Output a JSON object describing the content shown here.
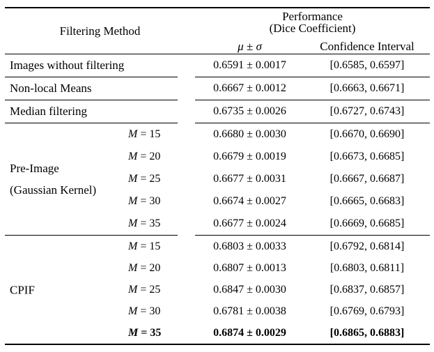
{
  "table": {
    "header": {
      "filtering_method": "Filtering Method",
      "performance_line1": "Performance",
      "performance_line2": "(Dice Coefficient)",
      "mu_sigma": "μ ± σ",
      "confidence_interval": "Confidence Interval"
    },
    "rows": [
      {
        "method": "Images without filtering",
        "mu_sigma": "0.6591 ± 0.0017",
        "ci": "[0.6585, 0.6597]"
      },
      {
        "method": "Non-local Means",
        "mu_sigma": "0.6667 ± 0.0012",
        "ci": "[0.6663, 0.6671]"
      },
      {
        "method": "Median filtering",
        "mu_sigma": "0.6735 ± 0.0026",
        "ci": "[0.6727, 0.6743]"
      }
    ],
    "groups": [
      {
        "method_line1": "Pre-Image",
        "method_line2": "(Gaussian Kernel)",
        "rows": [
          {
            "m_var": "M",
            "m_rest": " = 15",
            "mu_sigma": "0.6680 ± 0.0030",
            "ci": "[0.6670, 0.6690]"
          },
          {
            "m_var": "M",
            "m_rest": " = 20",
            "mu_sigma": "0.6679 ± 0.0019",
            "ci": "[0.6673, 0.6685]"
          },
          {
            "m_var": "M",
            "m_rest": " = 25",
            "mu_sigma": "0.6677 ± 0.0031",
            "ci": "[0.6667, 0.6687]"
          },
          {
            "m_var": "M",
            "m_rest": " = 30",
            "mu_sigma": "0.6674 ± 0.0027",
            "ci": "[0.6665, 0.6683]"
          },
          {
            "m_var": "M",
            "m_rest": " = 35",
            "mu_sigma": "0.6677 ± 0.0024",
            "ci": "[0.6669, 0.6685]"
          }
        ]
      },
      {
        "method_line1": "CPIF",
        "method_line2": "",
        "rows": [
          {
            "m_var": "M",
            "m_rest": " = 15",
            "mu_sigma": "0.6803 ± 0.0033",
            "ci": "[0.6792, 0.6814]"
          },
          {
            "m_var": "M",
            "m_rest": " = 20",
            "mu_sigma": "0.6807 ± 0.0013",
            "ci": "[0.6803, 0.6811]"
          },
          {
            "m_var": "M",
            "m_rest": " = 25",
            "mu_sigma": "0.6847 ± 0.0030",
            "ci": "[0.6837, 0.6857]"
          },
          {
            "m_var": "M",
            "m_rest": " = 30",
            "mu_sigma": "0.6781 ± 0.0038",
            "ci": "[0.6769, 0.6793]"
          },
          {
            "m_var": "M",
            "m_rest": " = 35",
            "mu_sigma": "0.6874 ± 0.0029",
            "ci": "[0.6865, 0.6883]"
          }
        ]
      }
    ]
  },
  "chart_data": {
    "type": "table",
    "title": "Performance (Dice Coefficient)",
    "columns": [
      "Filtering Method",
      "M",
      "mu",
      "sigma",
      "ci_low",
      "ci_high"
    ],
    "rows": [
      [
        "Images without filtering",
        null,
        0.6591,
        0.0017,
        0.6585,
        0.6597
      ],
      [
        "Non-local Means",
        null,
        0.6667,
        0.0012,
        0.6663,
        0.6671
      ],
      [
        "Median filtering",
        null,
        0.6735,
        0.0026,
        0.6727,
        0.6743
      ],
      [
        "Pre-Image (Gaussian Kernel)",
        15,
        0.668,
        0.003,
        0.667,
        0.669
      ],
      [
        "Pre-Image (Gaussian Kernel)",
        20,
        0.6679,
        0.0019,
        0.6673,
        0.6685
      ],
      [
        "Pre-Image (Gaussian Kernel)",
        25,
        0.6677,
        0.0031,
        0.6667,
        0.6687
      ],
      [
        "Pre-Image (Gaussian Kernel)",
        30,
        0.6674,
        0.0027,
        0.6665,
        0.6683
      ],
      [
        "Pre-Image (Gaussian Kernel)",
        35,
        0.6677,
        0.0024,
        0.6669,
        0.6685
      ],
      [
        "CPIF",
        15,
        0.6803,
        0.0033,
        0.6792,
        0.6814
      ],
      [
        "CPIF",
        20,
        0.6807,
        0.0013,
        0.6803,
        0.6811
      ],
      [
        "CPIF",
        25,
        0.6847,
        0.003,
        0.6837,
        0.6857
      ],
      [
        "CPIF",
        30,
        0.6781,
        0.0038,
        0.6769,
        0.6793
      ],
      [
        "CPIF",
        35,
        0.6874,
        0.0029,
        0.6865,
        0.6883
      ]
    ],
    "bold_row_index": 12
  }
}
